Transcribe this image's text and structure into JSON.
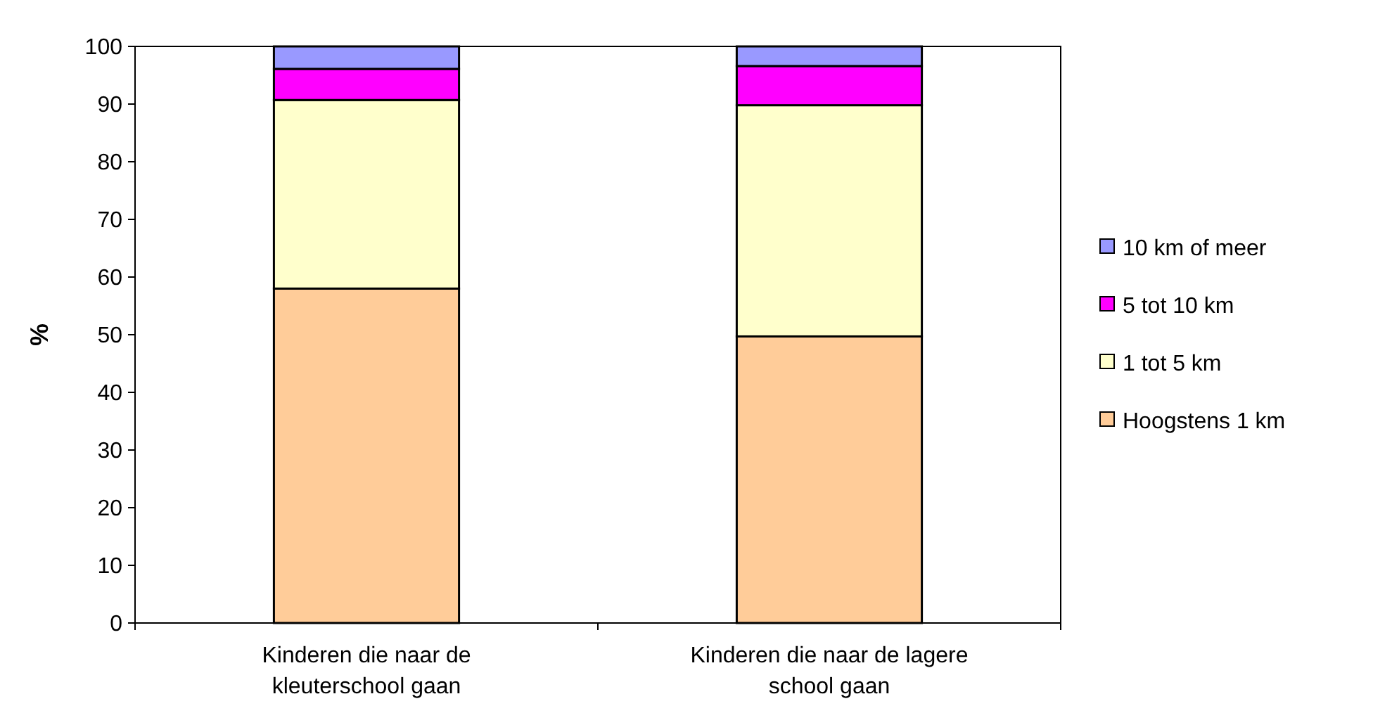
{
  "chart_data": {
    "type": "bar",
    "stacked": true,
    "ylabel": "%",
    "categories": [
      "Kinderen die naar de kleuterschool gaan",
      "Kinderen die naar de lagere school gaan"
    ],
    "series": [
      {
        "name": "Hoogstens 1 km",
        "color": "#ffcc99",
        "values": [
          58,
          49.7
        ]
      },
      {
        "name": "1 tot 5 km",
        "color": "#ffffcc",
        "values": [
          32.7,
          40.1
        ]
      },
      {
        "name": "5 tot 10 km",
        "color": "#ff00ff",
        "values": [
          5.4,
          6.8
        ]
      },
      {
        "name": "10 km of meer",
        "color": "#9999ff",
        "values": [
          3.9,
          3.4
        ]
      }
    ],
    "ylim": [
      0,
      100
    ],
    "yticks": [
      0,
      10,
      20,
      30,
      40,
      50,
      60,
      70,
      80,
      90,
      100
    ],
    "legend": "right",
    "grid": false
  }
}
